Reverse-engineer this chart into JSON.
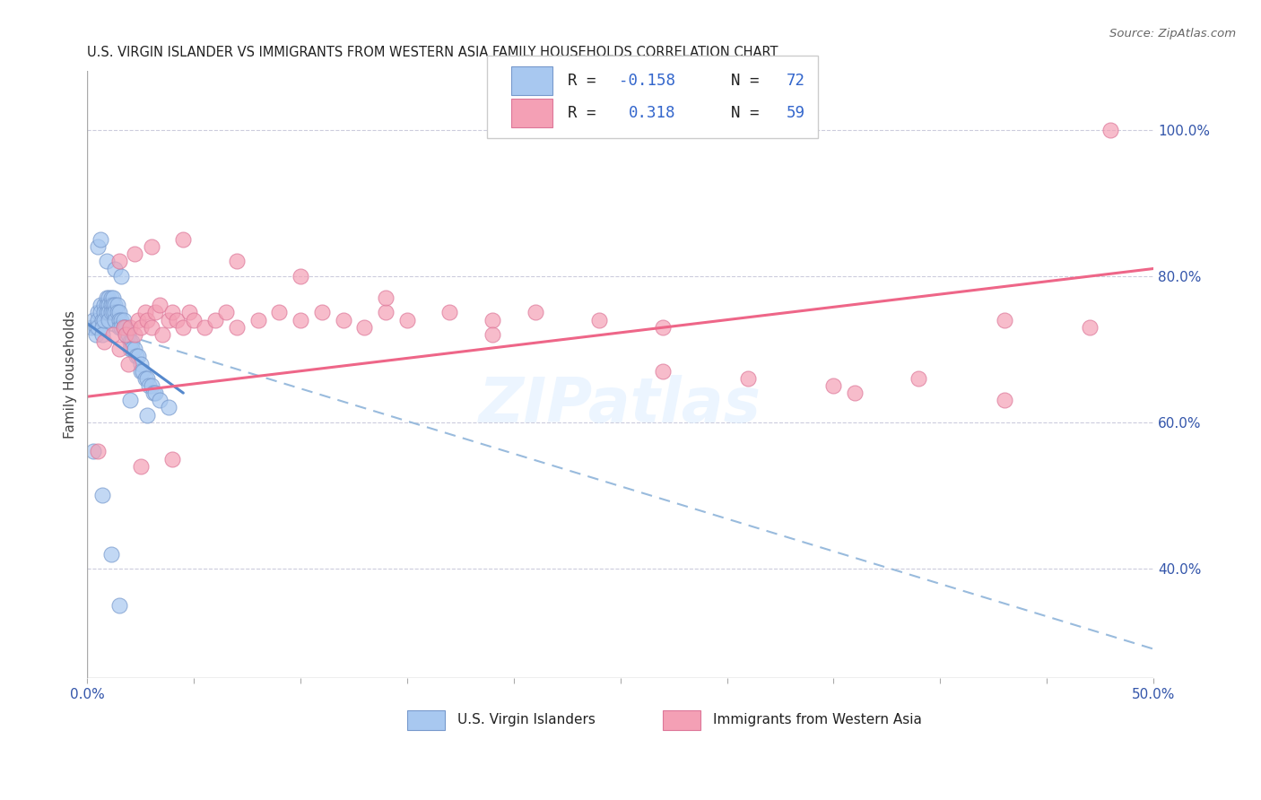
{
  "title": "U.S. VIRGIN ISLANDER VS IMMIGRANTS FROM WESTERN ASIA FAMILY HOUSEHOLDS CORRELATION CHART",
  "source": "Source: ZipAtlas.com",
  "ylabel": "Family Households",
  "right_yticks": [
    "100.0%",
    "80.0%",
    "60.0%",
    "40.0%"
  ],
  "right_ytick_vals": [
    1.0,
    0.8,
    0.6,
    0.4
  ],
  "xlim": [
    0.0,
    0.5
  ],
  "ylim": [
    0.25,
    1.08
  ],
  "blue_color": "#a8c8f0",
  "blue_edge_color": "#7799cc",
  "pink_color": "#f4a0b5",
  "pink_edge_color": "#dd7799",
  "blue_line_color": "#5588cc",
  "pink_line_color": "#ee6688",
  "dashed_line_color": "#99bbdd",
  "watermark": "ZIPatlas",
  "blue_scatter_x": [
    0.002,
    0.003,
    0.004,
    0.004,
    0.005,
    0.005,
    0.005,
    0.006,
    0.006,
    0.007,
    0.007,
    0.007,
    0.008,
    0.008,
    0.008,
    0.009,
    0.009,
    0.009,
    0.01,
    0.01,
    0.01,
    0.01,
    0.011,
    0.011,
    0.011,
    0.012,
    0.012,
    0.012,
    0.013,
    0.013,
    0.013,
    0.014,
    0.014,
    0.015,
    0.015,
    0.015,
    0.016,
    0.016,
    0.017,
    0.017,
    0.018,
    0.018,
    0.019,
    0.02,
    0.02,
    0.021,
    0.021,
    0.022,
    0.023,
    0.024,
    0.025,
    0.025,
    0.026,
    0.027,
    0.028,
    0.029,
    0.03,
    0.031,
    0.032,
    0.034,
    0.005,
    0.006,
    0.009,
    0.013,
    0.016,
    0.02,
    0.028,
    0.038,
    0.003,
    0.007,
    0.011,
    0.015
  ],
  "blue_scatter_y": [
    0.73,
    0.74,
    0.73,
    0.72,
    0.75,
    0.74,
    0.73,
    0.76,
    0.75,
    0.74,
    0.73,
    0.72,
    0.76,
    0.75,
    0.74,
    0.77,
    0.76,
    0.75,
    0.77,
    0.76,
    0.75,
    0.74,
    0.77,
    0.76,
    0.75,
    0.77,
    0.76,
    0.75,
    0.76,
    0.75,
    0.74,
    0.76,
    0.75,
    0.75,
    0.74,
    0.73,
    0.74,
    0.73,
    0.74,
    0.73,
    0.73,
    0.72,
    0.72,
    0.71,
    0.7,
    0.71,
    0.7,
    0.7,
    0.69,
    0.69,
    0.68,
    0.67,
    0.67,
    0.66,
    0.66,
    0.65,
    0.65,
    0.64,
    0.64,
    0.63,
    0.84,
    0.85,
    0.82,
    0.81,
    0.8,
    0.63,
    0.61,
    0.62,
    0.56,
    0.5,
    0.42,
    0.35
  ],
  "pink_scatter_x": [
    0.005,
    0.008,
    0.012,
    0.015,
    0.017,
    0.018,
    0.019,
    0.02,
    0.022,
    0.024,
    0.025,
    0.027,
    0.028,
    0.03,
    0.032,
    0.034,
    0.035,
    0.038,
    0.04,
    0.042,
    0.045,
    0.048,
    0.05,
    0.055,
    0.06,
    0.065,
    0.07,
    0.08,
    0.09,
    0.1,
    0.11,
    0.12,
    0.13,
    0.14,
    0.15,
    0.17,
    0.19,
    0.21,
    0.24,
    0.27,
    0.31,
    0.35,
    0.39,
    0.43,
    0.47,
    0.015,
    0.022,
    0.03,
    0.045,
    0.07,
    0.1,
    0.14,
    0.19,
    0.27,
    0.36,
    0.43,
    0.48,
    0.025,
    0.04
  ],
  "pink_scatter_y": [
    0.56,
    0.71,
    0.72,
    0.7,
    0.73,
    0.72,
    0.68,
    0.73,
    0.72,
    0.74,
    0.73,
    0.75,
    0.74,
    0.73,
    0.75,
    0.76,
    0.72,
    0.74,
    0.75,
    0.74,
    0.73,
    0.75,
    0.74,
    0.73,
    0.74,
    0.75,
    0.73,
    0.74,
    0.75,
    0.74,
    0.75,
    0.74,
    0.73,
    0.75,
    0.74,
    0.75,
    0.74,
    0.75,
    0.74,
    0.73,
    0.66,
    0.65,
    0.66,
    0.74,
    0.73,
    0.82,
    0.83,
    0.84,
    0.85,
    0.82,
    0.8,
    0.77,
    0.72,
    0.67,
    0.64,
    0.63,
    1.0,
    0.54,
    0.55
  ],
  "blue_trend_x": [
    0.0,
    0.045
  ],
  "blue_trend_y": [
    0.735,
    0.64
  ],
  "dashed_trend_x": [
    0.0,
    0.5
  ],
  "dashed_trend_y": [
    0.735,
    0.29
  ],
  "pink_trend_x": [
    0.0,
    0.5
  ],
  "pink_trend_y": [
    0.635,
    0.81
  ]
}
